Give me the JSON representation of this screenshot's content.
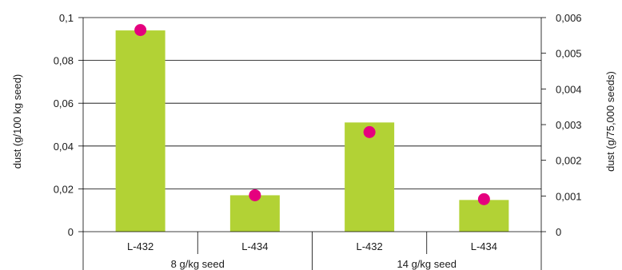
{
  "chart_data": {
    "type": "bar",
    "groups": [
      {
        "label": "8 g/kg seed",
        "categories": [
          "L-432",
          "L-434"
        ]
      },
      {
        "label": "14 g/kg seed",
        "categories": [
          "L-432",
          "L-434"
        ]
      }
    ],
    "categories": [
      "L-432",
      "L-434",
      "L-432",
      "L-434"
    ],
    "series": [
      {
        "type": "bar",
        "axis": "left",
        "values": [
          0.094,
          0.017,
          0.051,
          0.0148
        ]
      },
      {
        "type": "scatter",
        "axis": "right",
        "values": [
          0.00565,
          0.00102,
          0.00279,
          0.00091
        ]
      }
    ],
    "ylabel": "dust (g/100 kg seed)",
    "y2label": "dust (g/75,000 seeds)",
    "ylim": [
      0,
      0.1
    ],
    "y2lim": [
      0,
      0.006
    ],
    "yticks": [
      "0",
      "0,02",
      "0,04",
      "0,06",
      "0,08",
      "0,1"
    ],
    "y2ticks": [
      "0",
      "0,001",
      "0,002",
      "0,003",
      "0,004",
      "0,005",
      "0,006"
    ],
    "grid": true,
    "colors": {
      "bar": "#b2d235",
      "marker": "#e5007e",
      "grid": "#000000"
    }
  }
}
